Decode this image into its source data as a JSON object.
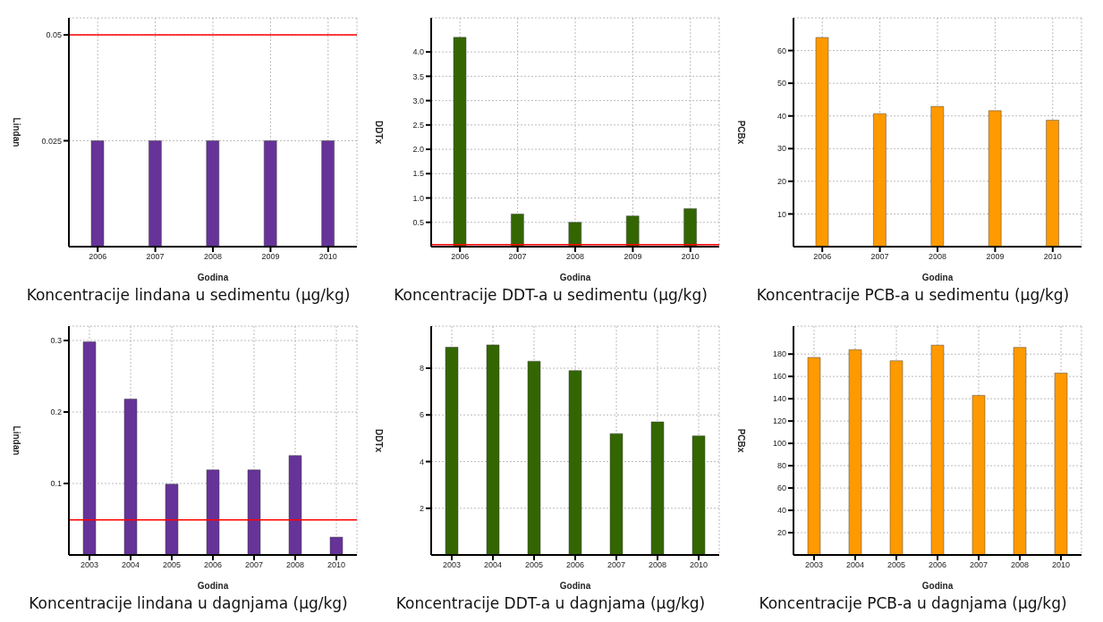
{
  "chart_data": [
    {
      "type": "bar",
      "title": "Koncentracije lindana u sedimentu (µg/kg)",
      "xlabel": "Godina",
      "ylabel": "Lindan",
      "categories": [
        "2006",
        "2007",
        "2008",
        "2009",
        "2010"
      ],
      "values": [
        0.025,
        0.025,
        0.025,
        0.025,
        0.025
      ],
      "color": "#663399",
      "ylim": [
        0,
        0.054
      ],
      "yticks": [
        0.025,
        0.05
      ],
      "grid": true,
      "ref_lines": [
        {
          "axis": "y",
          "value": 0.05,
          "color": "#ff0000"
        }
      ]
    },
    {
      "type": "bar",
      "title": "Koncentracije DDT-a u sedimentu (µg/kg)",
      "xlabel": "Godina",
      "ylabel": "DDTx",
      "categories": [
        "2006",
        "2007",
        "2008",
        "2009",
        "2010"
      ],
      "values": [
        4.3,
        0.67,
        0.5,
        0.63,
        0.78
      ],
      "color": "#336600",
      "ylim": [
        0,
        4.7
      ],
      "yticks": [
        0.5,
        {
          "value": 1,
          "label": "1.0"
        },
        1.5,
        {
          "value": 2,
          "label": "2.0"
        },
        2.5,
        {
          "value": 3,
          "label": "3.0"
        },
        3.5,
        {
          "value": 4,
          "label": "4.0"
        }
      ],
      "grid": true,
      "ref_lines": [
        {
          "axis": "y",
          "value": 0.04,
          "color": "#ff0000"
        }
      ]
    },
    {
      "type": "bar",
      "title": "Koncentracije PCB-a u sedimentu (µg/kg)",
      "xlabel": "Godina",
      "ylabel": "PCBx",
      "categories": [
        "2006",
        "2007",
        "2008",
        "2009",
        "2010"
      ],
      "values": [
        64,
        40.7,
        42.9,
        41.6,
        38.7
      ],
      "color": "#ff9900",
      "ylim": [
        0,
        70
      ],
      "yticks": [
        10,
        20,
        30,
        40,
        50,
        60
      ],
      "grid": true
    },
    {
      "type": "bar",
      "title": "Koncentracije lindana u dagnjama (µg/kg)",
      "xlabel": "Godina",
      "ylabel": "Lindan",
      "categories": [
        "2003",
        "2004",
        "2005",
        "2006",
        "2007",
        "2008",
        "2010"
      ],
      "values": [
        0.298,
        0.218,
        0.099,
        0.119,
        0.119,
        0.139,
        0.025
      ],
      "color": "#663399",
      "ylim": [
        0,
        0.32
      ],
      "yticks": [
        0.1,
        0.2,
        0.3
      ],
      "grid": true,
      "ref_lines": [
        {
          "axis": "y",
          "value": 0.049,
          "color": "#ff0000"
        }
      ]
    },
    {
      "type": "bar",
      "title": "Koncentracije DDT-a u dagnjama (µg/kg)",
      "xlabel": "Godina",
      "ylabel": "DDTx",
      "categories": [
        "2003",
        "2004",
        "2005",
        "2006",
        "2007",
        "2008",
        "2010"
      ],
      "values": [
        8.9,
        9.0,
        8.3,
        7.9,
        5.2,
        5.7,
        5.1
      ],
      "color": "#336600",
      "ylim": [
        0,
        9.8
      ],
      "yticks": [
        2,
        4,
        6,
        8
      ],
      "grid": true
    },
    {
      "type": "bar",
      "title": "Koncentracije PCB-a u dagnjama (µg/kg)",
      "xlabel": "Godina",
      "ylabel": "PCBx",
      "categories": [
        "2003",
        "2004",
        "2005",
        "2006",
        "2007",
        "2008",
        "2010"
      ],
      "values": [
        177,
        184,
        174,
        188,
        143,
        186,
        163
      ],
      "color": "#ff9900",
      "ylim": [
        0,
        205
      ],
      "yticks": [
        20,
        40,
        60,
        80,
        100,
        120,
        140,
        160,
        180
      ],
      "grid": true
    }
  ]
}
